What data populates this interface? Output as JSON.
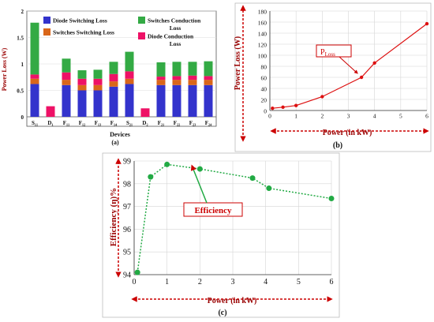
{
  "chart_data": [
    {
      "panel_label": "(a)",
      "type": "bar",
      "title": "",
      "xlabel": "Devices",
      "ylabel": "Power Loss (W)",
      "ylim": [
        0,
        2
      ],
      "yticks": [
        "0",
        "0.5",
        "1",
        "1.5",
        "2"
      ],
      "categories": [
        "S₁₁",
        "D₁",
        "F₁₁",
        "F₁₂",
        "F₁₃",
        "F₁₄",
        "S₂₁",
        "D₂",
        "F₂₁",
        "F₂₂",
        "F₂₃",
        "F₂₄"
      ],
      "stacked": true,
      "legend_position": "top",
      "series": [
        {
          "name": "Diode Switching Loss",
          "color": "#3333cc",
          "values": [
            0.62,
            0,
            0.6,
            0.5,
            0.5,
            0.57,
            0.62,
            0,
            0.6,
            0.6,
            0.6,
            0.6
          ]
        },
        {
          "name": "Switches Switching Loss",
          "color": "#d9661a",
          "values": [
            0.1,
            0,
            0.1,
            0.1,
            0.1,
            0.1,
            0.1,
            0,
            0.1,
            0.1,
            0.1,
            0.1
          ]
        },
        {
          "name": "Diode Conduction Loss",
          "color": "#ee1166",
          "values": [
            0.08,
            0.2,
            0.14,
            0.12,
            0.12,
            0.14,
            0.14,
            0.16,
            0.06,
            0.07,
            0.08,
            0.07
          ]
        },
        {
          "name": "Switches Conduction Loss",
          "color": "#33aa44",
          "values": [
            0.98,
            0,
            0.26,
            0.16,
            0.17,
            0.23,
            0.37,
            0,
            0.27,
            0.27,
            0.26,
            0.28
          ]
        }
      ],
      "legend_labels": {
        "diode_switching": "Diode Switching Loss",
        "switches_switching": "Switches Switching Loss",
        "switches_conduction_l1": "Switches Conduction",
        "switches_conduction_l2": "Loss",
        "diode_conduction_l1": "Diode Conduction",
        "diode_conduction_l2": "Loss"
      }
    },
    {
      "panel_label": "(b)",
      "type": "line",
      "title": "",
      "xlabel": "Power (in kW)",
      "ylabel": "Power Loss (W)",
      "xlim": [
        0,
        6
      ],
      "ylim": [
        0,
        180
      ],
      "xticks": [
        "0",
        "1",
        "2",
        "3",
        "4",
        "5",
        "6"
      ],
      "yticks": [
        "0",
        "20",
        "40",
        "60",
        "80",
        "100",
        "120",
        "140",
        "160",
        "180"
      ],
      "grid": true,
      "series": [
        {
          "name": "P",
          "name_sub": "Loss",
          "color": "#dd1111",
          "x": [
            0.1,
            0.5,
            1,
            2,
            3.5,
            4,
            6
          ],
          "y": [
            4,
            6,
            9,
            25,
            60,
            86,
            157
          ]
        }
      ]
    },
    {
      "panel_label": "(c)",
      "type": "line",
      "title": "",
      "xlabel": "Power (in kW)",
      "ylabel": "Efficiency (η)%",
      "xlim": [
        0,
        6
      ],
      "ylim": [
        94,
        99
      ],
      "xticks": [
        "0",
        "1",
        "2",
        "3",
        "4",
        "5",
        "6"
      ],
      "yticks": [
        "94",
        "95",
        "96",
        "97",
        "98",
        "99"
      ],
      "grid": true,
      "series": [
        {
          "name": "Efficiency",
          "color": "#22aa44",
          "x": [
            0.1,
            0.5,
            1,
            2,
            3.6,
            4.1,
            6
          ],
          "y": [
            94.1,
            98.3,
            98.85,
            98.65,
            98.25,
            97.8,
            97.35
          ]
        }
      ]
    }
  ]
}
